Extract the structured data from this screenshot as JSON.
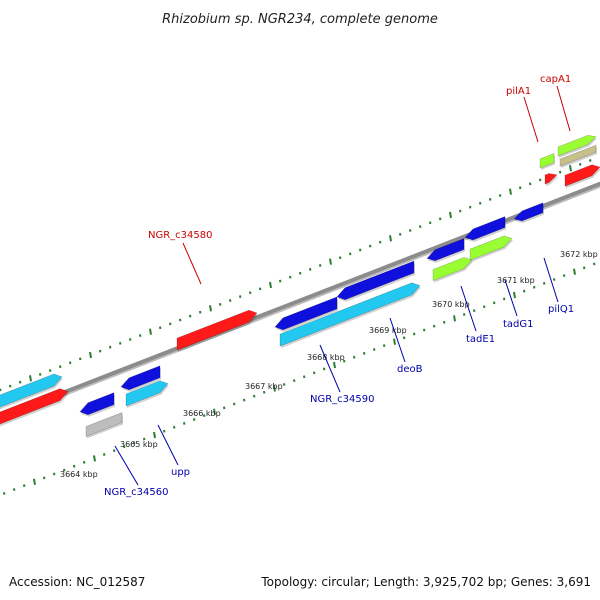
{
  "title": "Rhizobium sp. NGR234, complete genome",
  "footer": {
    "accession": "Accession: NC_012587",
    "stats": "Topology: circular; Length: 3,925,702 bp; Genes: 3,691"
  },
  "colors": {
    "backbone": "#8c8c8c",
    "tick": "#2e7d32",
    "fwd_label": "#cc0000",
    "rev_label": "#0000aa",
    "red_gene": "#ff1a1a",
    "blue_gene": "#1010dd",
    "cyan_gene": "#22c8f0",
    "green_gene": "#99ff33",
    "khaki_gene": "#c8c08a",
    "grey_gene": "#bdbdbd"
  },
  "axis": {
    "start_kbp": 3663.6,
    "end_kbp": 3672.6,
    "tick_labels": [
      "3664 kbp",
      "3665 kbp",
      "3666 kbp",
      "3667 kbp",
      "3668 kbp",
      "3669 kbp",
      "3670 kbp",
      "3671 kbp",
      "3672 kbp"
    ]
  },
  "labels": [
    {
      "text": "capA1",
      "strand": "forward"
    },
    {
      "text": "pilA1",
      "strand": "forward"
    },
    {
      "text": "NGR_c34580",
      "strand": "forward"
    },
    {
      "text": "NGR_c34560",
      "strand": "reverse"
    },
    {
      "text": "upp",
      "strand": "reverse"
    },
    {
      "text": "NGR_c34590",
      "strand": "reverse"
    },
    {
      "text": "deoB",
      "strand": "reverse"
    },
    {
      "text": "tadE1",
      "strand": "reverse"
    },
    {
      "text": "tadG1",
      "strand": "reverse"
    },
    {
      "text": "pilQ1",
      "strand": "reverse"
    }
  ]
}
